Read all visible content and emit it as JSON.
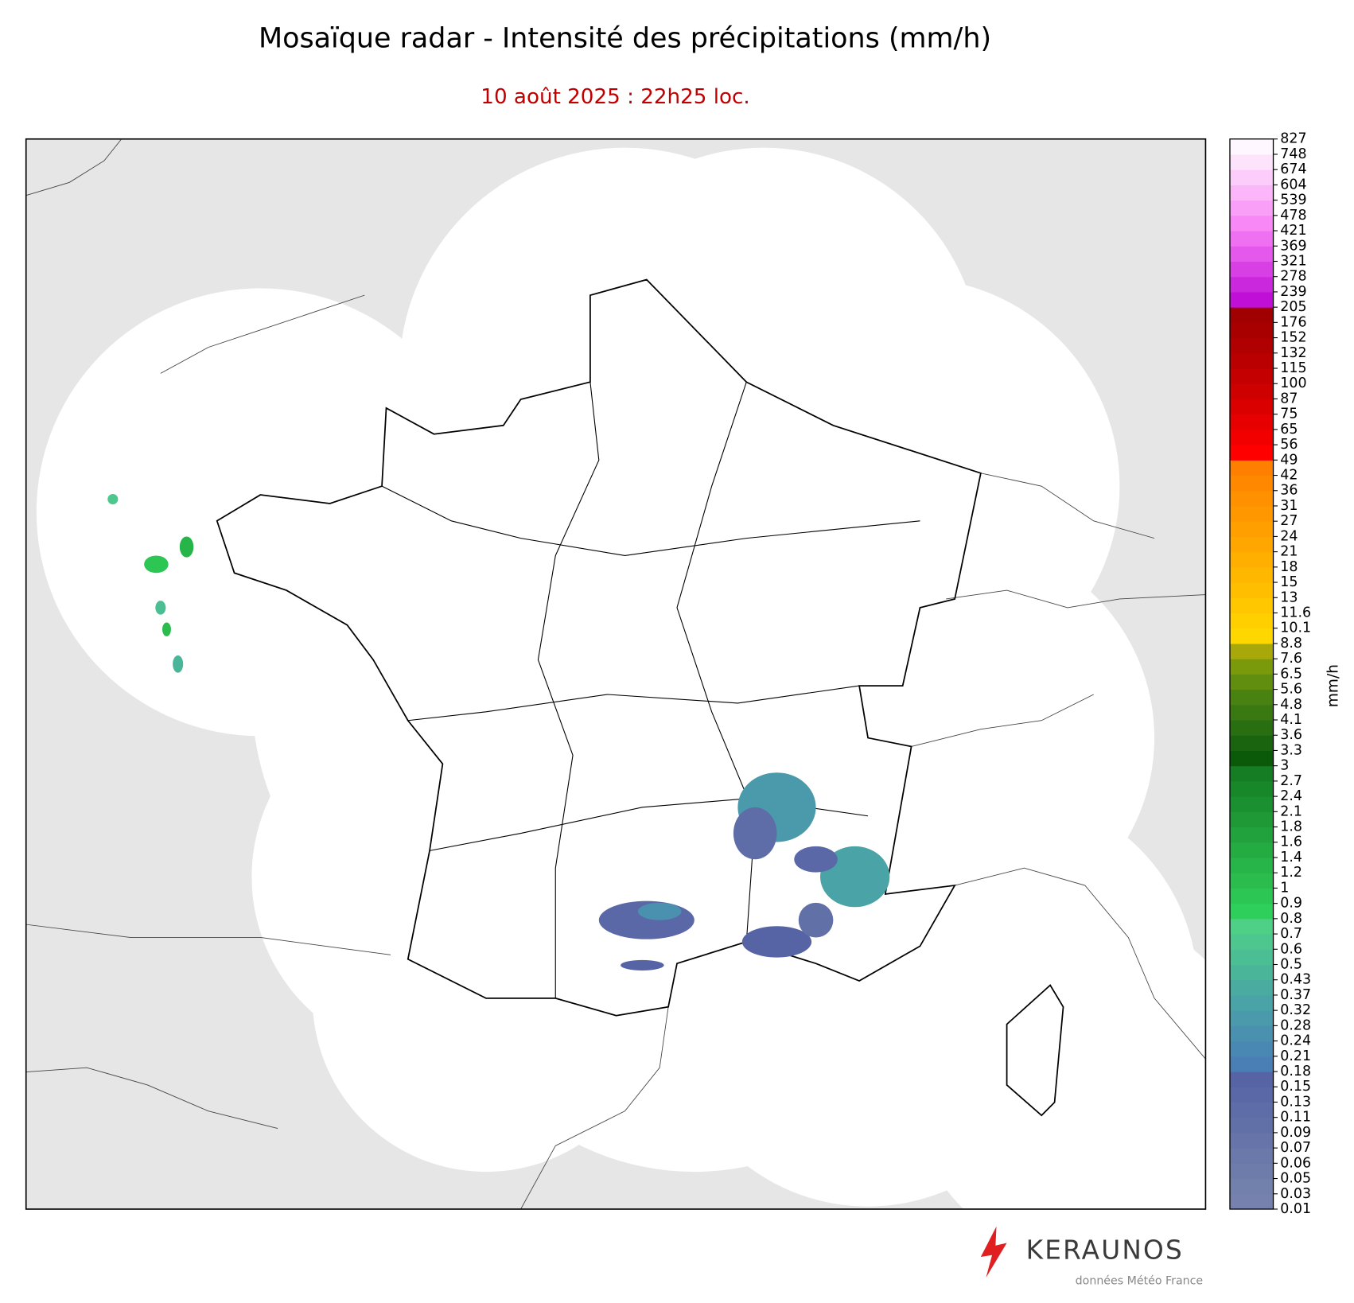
{
  "title": "Mosaïque radar - Intensité des précipitations (mm/h)",
  "subtitle": "10 août 2025 : 22h25 loc.",
  "colorbar": {
    "label": "mm/h",
    "ticks": [
      0.01,
      0.03,
      0.05,
      0.06,
      0.07,
      0.09,
      0.11,
      0.13,
      0.15,
      0.18,
      0.21,
      0.24,
      0.28,
      0.32,
      0.37,
      0.43,
      0.5,
      0.6,
      0.7,
      0.8,
      0.9,
      1,
      1.2,
      1.4,
      1.6,
      1.8,
      2.1,
      2.4,
      2.7,
      3,
      3.3,
      3.6,
      4.1,
      4.8,
      5.6,
      6.5,
      7.6,
      8.8,
      10.1,
      11.6,
      13,
      15,
      18,
      21,
      24,
      27,
      31,
      36,
      42,
      49,
      56,
      65,
      75,
      87,
      100,
      115,
      132,
      152,
      176,
      205,
      239,
      278,
      321,
      369,
      421,
      478,
      539,
      604,
      674,
      748,
      827
    ],
    "colors": [
      "#7682ad",
      "#7280ac",
      "#6e7cab",
      "#6a78aa",
      "#6674a9",
      "#6270a8",
      "#5e6ca8",
      "#5a68a7",
      "#5664a6",
      "#4a7fb6",
      "#4a88b4",
      "#4a91b0",
      "#4a9aab",
      "#4aa3a6",
      "#4aaca0",
      "#4bb59a",
      "#4cbe94",
      "#4dc78d",
      "#4ed087",
      "#2ecf5a",
      "#2cc654",
      "#2abd4e",
      "#27b448",
      "#24ab42",
      "#21a23c",
      "#1e9936",
      "#1b9030",
      "#18872a",
      "#157e24",
      "#0a5a0a",
      "#1a6410",
      "#2a6e12",
      "#3a7812",
      "#4a8212",
      "#628e10",
      "#7a9a0c",
      "#a8a80a",
      "#ffd700",
      "#ffcf00",
      "#ffc700",
      "#ffbf00",
      "#ffb700",
      "#ffaf00",
      "#ffa700",
      "#ffa000",
      "#ff9800",
      "#ff9000",
      "#ff8800",
      "#ff8000",
      "#ff0000",
      "#f20000",
      "#e60000",
      "#da0000",
      "#ce0000",
      "#c40000",
      "#ba0000",
      "#b00000",
      "#a80000",
      "#a00000",
      "#c010d8",
      "#ca28dc",
      "#d840e6",
      "#e458ec",
      "#f070f2",
      "#f888f6",
      "#fa9ff8",
      "#fbb6f9",
      "#fccdfb",
      "#fde3fc",
      "#fff7ff"
    ]
  },
  "logo": {
    "name": "KERAUNOS",
    "credit": "données Météo France"
  }
}
